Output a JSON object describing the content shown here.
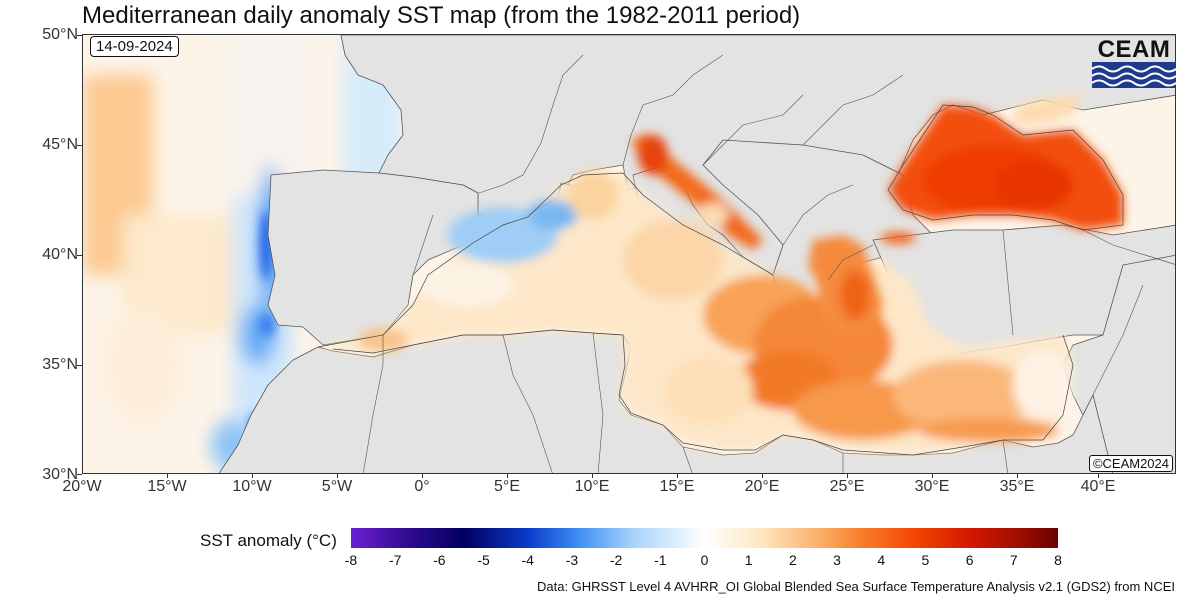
{
  "title": "Mediterranean daily anomaly SST map (from the 1982-2011 period)",
  "date_label": "14-09-2024",
  "copyright_label": "©CEAM2024",
  "logo_text": "CEAM",
  "colorbar": {
    "title": "SST anomaly (°C)",
    "ticks": [
      "-8",
      "-7",
      "-6",
      "-5",
      "-4",
      "-3",
      "-2",
      "-1",
      "0",
      "1",
      "2",
      "3",
      "4",
      "5",
      "6",
      "7",
      "8"
    ],
    "min": -8,
    "max": 8
  },
  "axes": {
    "lat_labels": [
      "50°N",
      "45°N",
      "40°N",
      "35°N",
      "30°N"
    ],
    "lon_labels": [
      "20°W",
      "15°W",
      "10°W",
      "5°W",
      "0°",
      "5°E",
      "10°E",
      "15°E",
      "20°E",
      "25°E",
      "30°E",
      "35°E",
      "40°E"
    ]
  },
  "source_text": "Data: GHRSST Level 4 AVHRR_OI Global Blended Sea Surface Temperature Analysis v2.1 (GDS2) from NCEI",
  "colors": {
    "land": "#e3e3e3",
    "cold": "#0a3cc8",
    "neutral": "#ffffff",
    "warm": "#ff4400",
    "hot": "#8a0000"
  }
}
